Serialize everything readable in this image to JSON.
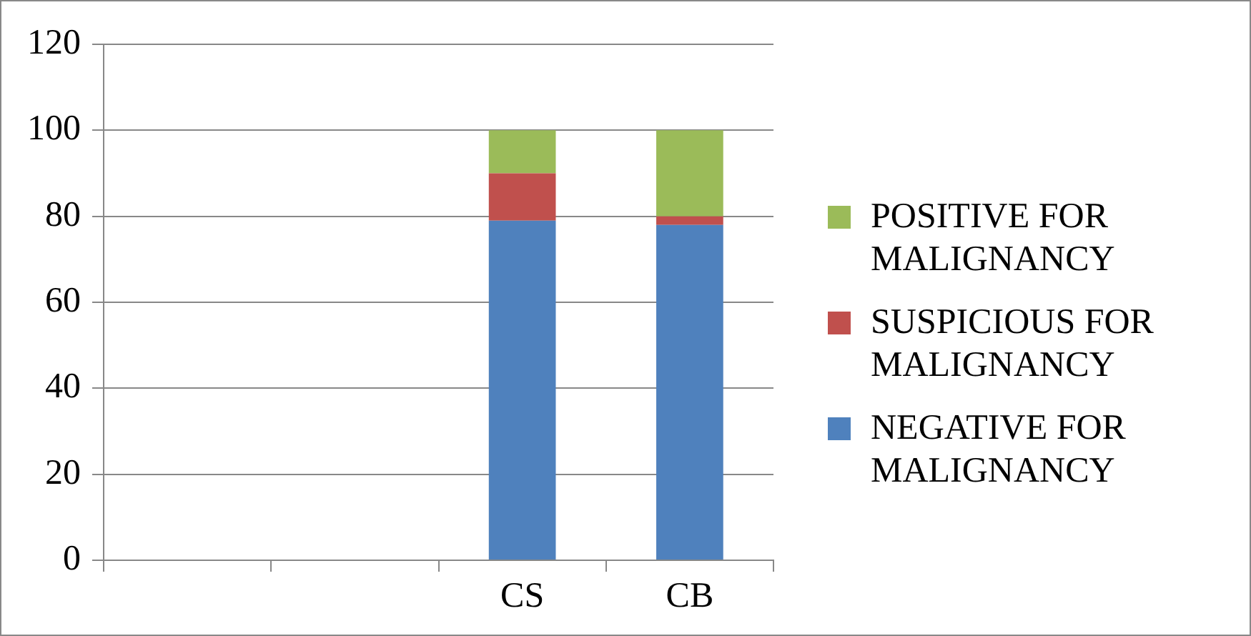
{
  "chart_data": {
    "type": "bar",
    "stacked": true,
    "categories": [
      null,
      null,
      "CS",
      "CB"
    ],
    "series": [
      {
        "name": "NEGATIVE FOR MALIGNANCY",
        "color": "#4f81bd",
        "values": [
          null,
          null,
          79,
          78
        ]
      },
      {
        "name": "SUSPICIOUS FOR MALIGNANCY",
        "color": "#c0504d",
        "values": [
          null,
          null,
          11,
          2
        ]
      },
      {
        "name": "POSITIVE FOR MALIGNANCY",
        "color": "#9bbb59",
        "values": [
          null,
          null,
          10,
          20
        ]
      }
    ],
    "ylim": [
      0,
      120
    ],
    "yticks": [
      0,
      20,
      40,
      60,
      80,
      100,
      120
    ],
    "grid": "y",
    "legend": "right"
  }
}
